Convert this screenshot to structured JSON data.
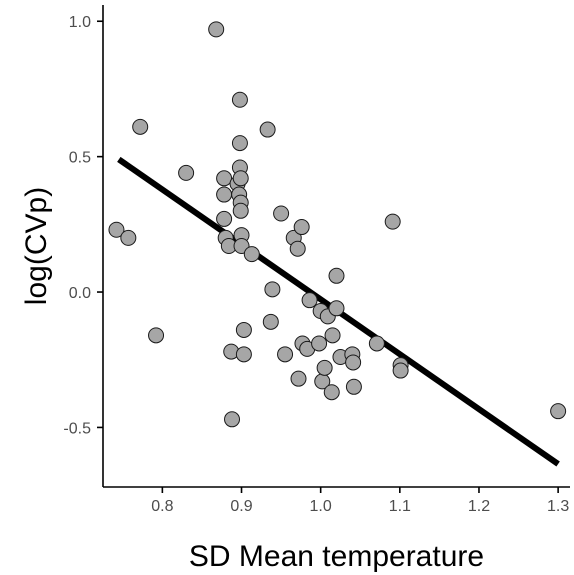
{
  "chart_data": {
    "type": "scatter",
    "title": "",
    "xlabel": "SD Mean temperature",
    "ylabel": "log(CVp)",
    "xlim": [
      0.725,
      1.315
    ],
    "ylim": [
      -0.72,
      1.06
    ],
    "xticks": [
      0.8,
      0.9,
      1.0,
      1.1,
      1.2,
      1.3
    ],
    "xtick_labels": [
      "0.8",
      "0.9",
      "1.0",
      "1.1",
      "1.2",
      "1.3"
    ],
    "yticks": [
      -0.5,
      0.0,
      0.5,
      1.0
    ],
    "ytick_labels": [
      "-0.5",
      "0.0",
      "0.5",
      "1.0"
    ],
    "grid": false,
    "legend": "none",
    "colors": {
      "point_fill": "#a6a6a6",
      "point_stroke": "#1a1a1a",
      "trend_line": "#000000",
      "axis": "#000000",
      "tick_text": "#4d4d4d"
    },
    "trend_line": {
      "x": [
        0.745,
        1.3
      ],
      "y": [
        0.49,
        -0.635
      ]
    },
    "points": [
      {
        "x": 0.742,
        "y": 0.23
      },
      {
        "x": 0.757,
        "y": 0.2
      },
      {
        "x": 0.772,
        "y": 0.61
      },
      {
        "x": 0.792,
        "y": -0.16
      },
      {
        "x": 0.83,
        "y": 0.44
      },
      {
        "x": 0.868,
        "y": 0.97
      },
      {
        "x": 0.878,
        "y": 0.42
      },
      {
        "x": 0.878,
        "y": 0.36
      },
      {
        "x": 0.878,
        "y": 0.27
      },
      {
        "x": 0.88,
        "y": 0.2
      },
      {
        "x": 0.884,
        "y": 0.17
      },
      {
        "x": 0.887,
        "y": -0.22
      },
      {
        "x": 0.888,
        "y": -0.47
      },
      {
        "x": 0.895,
        "y": 0.4
      },
      {
        "x": 0.897,
        "y": 0.36
      },
      {
        "x": 0.898,
        "y": 0.46
      },
      {
        "x": 0.898,
        "y": 0.71
      },
      {
        "x": 0.898,
        "y": 0.55
      },
      {
        "x": 0.899,
        "y": 0.42
      },
      {
        "x": 0.899,
        "y": 0.33
      },
      {
        "x": 0.899,
        "y": 0.3
      },
      {
        "x": 0.9,
        "y": 0.21
      },
      {
        "x": 0.9,
        "y": 0.17
      },
      {
        "x": 0.903,
        "y": -0.14
      },
      {
        "x": 0.903,
        "y": -0.23
      },
      {
        "x": 0.913,
        "y": 0.14
      },
      {
        "x": 0.933,
        "y": 0.6
      },
      {
        "x": 0.937,
        "y": -0.11
      },
      {
        "x": 0.939,
        "y": 0.01
      },
      {
        "x": 0.95,
        "y": 0.29
      },
      {
        "x": 0.955,
        "y": -0.23
      },
      {
        "x": 0.966,
        "y": 0.2
      },
      {
        "x": 0.971,
        "y": 0.16
      },
      {
        "x": 0.972,
        "y": -0.32
      },
      {
        "x": 0.976,
        "y": 0.24
      },
      {
        "x": 0.977,
        "y": -0.19
      },
      {
        "x": 0.983,
        "y": -0.21
      },
      {
        "x": 0.986,
        "y": -0.03
      },
      {
        "x": 0.998,
        "y": -0.19
      },
      {
        "x": 1.0,
        "y": -0.07
      },
      {
        "x": 1.002,
        "y": -0.33
      },
      {
        "x": 1.005,
        "y": -0.28
      },
      {
        "x": 1.009,
        "y": -0.09
      },
      {
        "x": 1.014,
        "y": -0.37
      },
      {
        "x": 1.015,
        "y": -0.16
      },
      {
        "x": 1.02,
        "y": -0.06
      },
      {
        "x": 1.02,
        "y": 0.06
      },
      {
        "x": 1.025,
        "y": -0.24
      },
      {
        "x": 1.04,
        "y": -0.23
      },
      {
        "x": 1.041,
        "y": -0.26
      },
      {
        "x": 1.042,
        "y": -0.35
      },
      {
        "x": 1.071,
        "y": -0.19
      },
      {
        "x": 1.091,
        "y": 0.26
      },
      {
        "x": 1.101,
        "y": -0.27
      },
      {
        "x": 1.101,
        "y": -0.29
      },
      {
        "x": 1.3,
        "y": -0.44
      }
    ]
  }
}
